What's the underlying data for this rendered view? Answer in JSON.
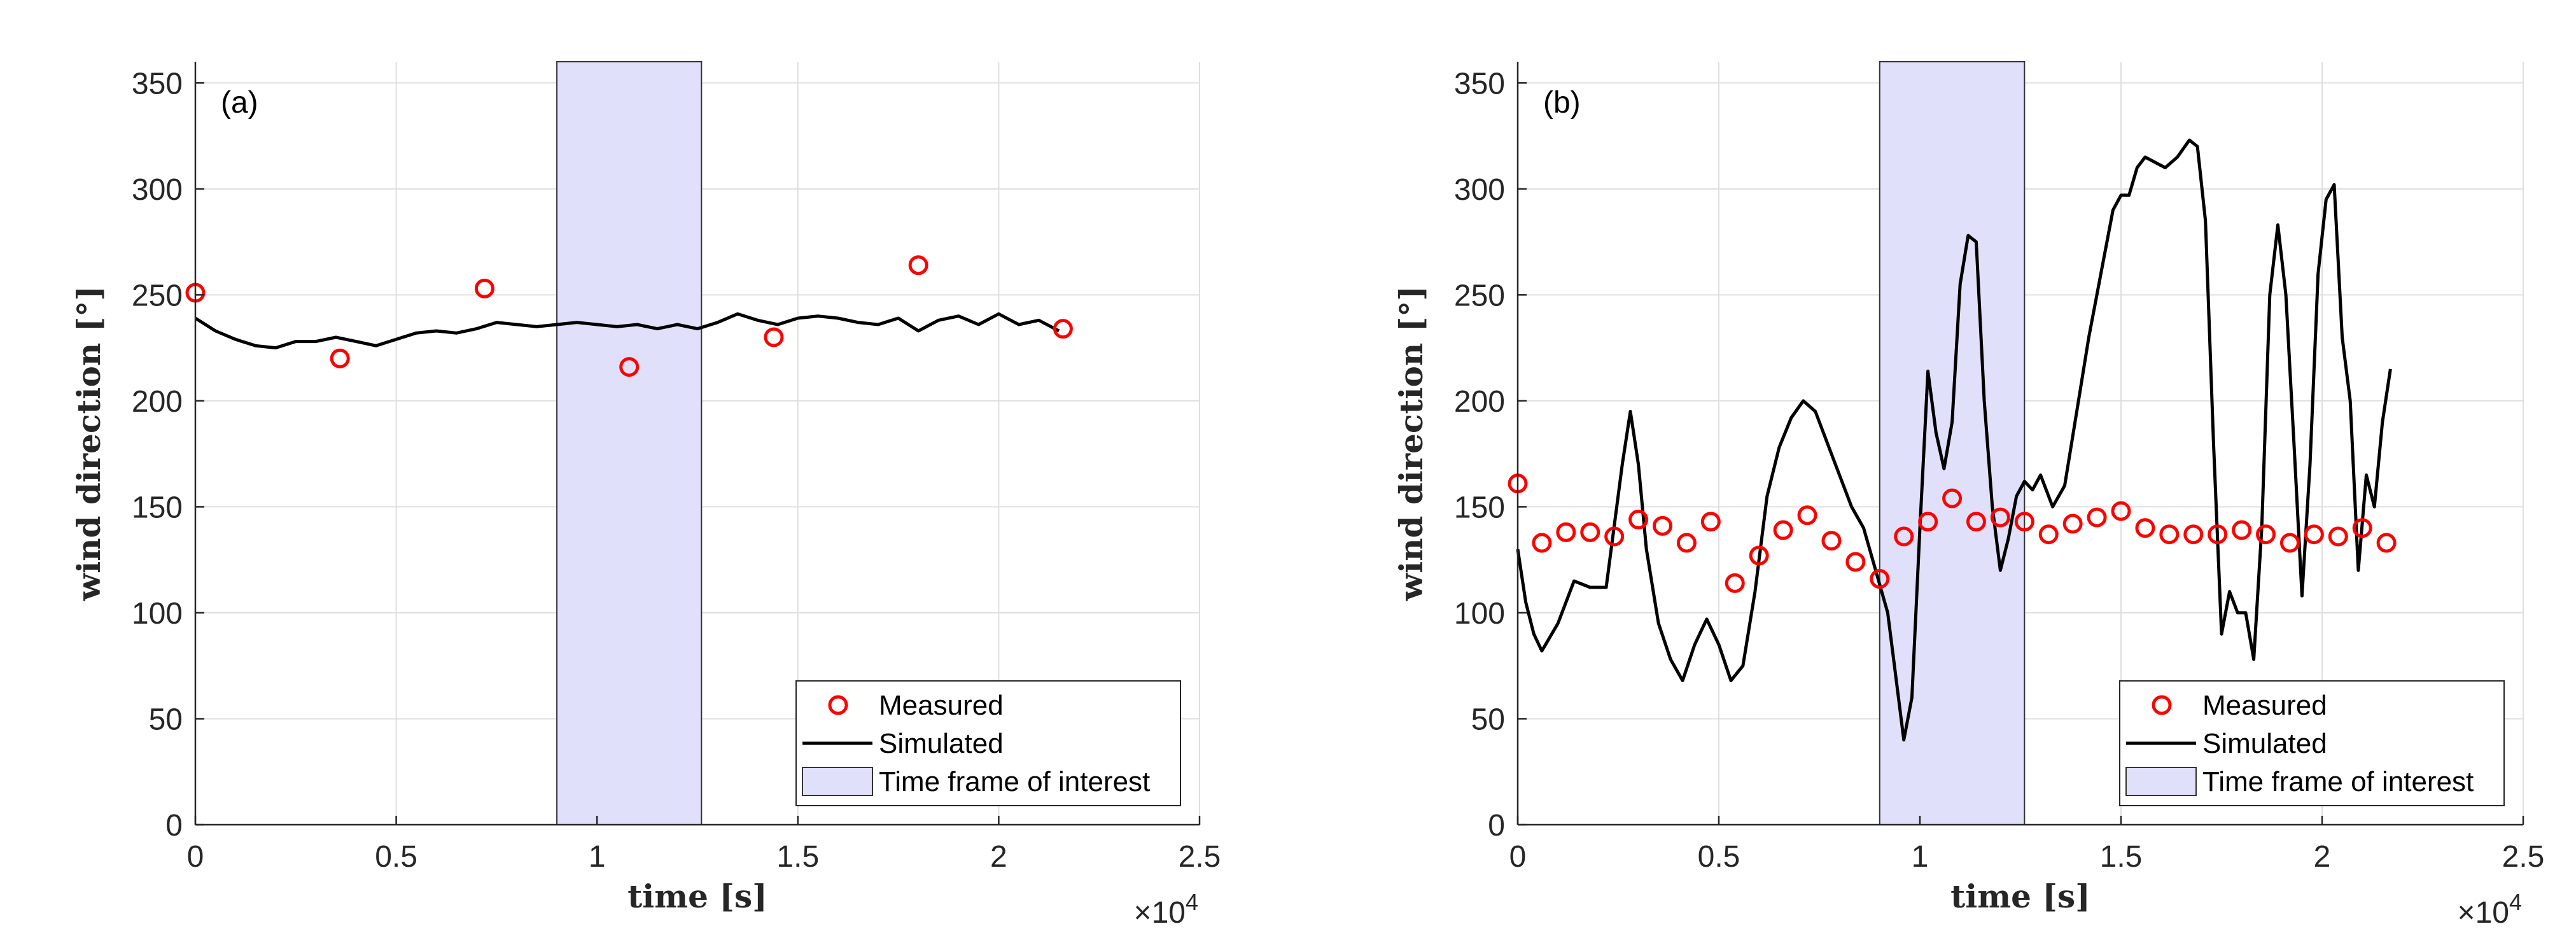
{
  "chart_data": [
    {
      "type": "line",
      "panel_label": "(a)",
      "xlabel": "time [s]",
      "ylabel": "wind direction [°]",
      "xlim": [
        0,
        25000
      ],
      "ylim": [
        0,
        360
      ],
      "x_ticks": [
        0,
        5000,
        10000,
        15000,
        20000,
        25000
      ],
      "x_tick_labels": [
        "0",
        "0.5",
        "1",
        "1.5",
        "2",
        "2.5"
      ],
      "y_ticks": [
        0,
        50,
        100,
        150,
        200,
        250,
        300,
        350
      ],
      "y_tick_labels": [
        "0",
        "50",
        "100",
        "150",
        "200",
        "250",
        "300",
        "350"
      ],
      "x_exponent_label": "×10",
      "x_exponent_power": "4",
      "grid": true,
      "highlight": {
        "name": "Time frame of interest",
        "x_start": 9000,
        "x_end": 12600,
        "color": "#e0e0fa"
      },
      "series": [
        {
          "name": "Measured",
          "kind": "markers",
          "color": "#ff0000",
          "x": [
            0,
            3600,
            7200,
            10800,
            14400,
            18000,
            21600
          ],
          "y": [
            251,
            220,
            253,
            216,
            230,
            264,
            234
          ]
        },
        {
          "name": "Simulated",
          "kind": "line",
          "color": "#000000",
          "x": [
            0,
            500,
            1000,
            1500,
            2000,
            2500,
            3000,
            3500,
            4000,
            4500,
            5000,
            5500,
            6000,
            6500,
            7000,
            7500,
            8000,
            8500,
            9000,
            9500,
            10000,
            10500,
            11000,
            11500,
            12000,
            12500,
            13000,
            13500,
            14000,
            14500,
            15000,
            15500,
            16000,
            16500,
            17000,
            17500,
            18000,
            18500,
            19000,
            19500,
            20000,
            20500,
            21000,
            21500
          ],
          "y": [
            239,
            233,
            229,
            226,
            225,
            228,
            228,
            230,
            228,
            226,
            229,
            232,
            233,
            232,
            234,
            237,
            236,
            235,
            236,
            237,
            236,
            235,
            236,
            234,
            236,
            234,
            237,
            241,
            238,
            236,
            239,
            240,
            239,
            237,
            236,
            239,
            233,
            238,
            240,
            236,
            241,
            236,
            238,
            233
          ]
        }
      ],
      "legend": {
        "position": "bottom-right",
        "entries": [
          "Measured",
          "Simulated",
          "Time frame of interest"
        ]
      }
    },
    {
      "type": "line",
      "panel_label": "(b)",
      "xlabel": "time [s]",
      "ylabel": "wind direction [°]",
      "xlim": [
        0,
        25000
      ],
      "ylim": [
        0,
        360
      ],
      "x_ticks": [
        0,
        5000,
        10000,
        15000,
        20000,
        25000
      ],
      "x_tick_labels": [
        "0",
        "0.5",
        "1",
        "1.5",
        "2",
        "2.5"
      ],
      "y_ticks": [
        0,
        50,
        100,
        150,
        200,
        250,
        300,
        350
      ],
      "y_tick_labels": [
        "0",
        "50",
        "100",
        "150",
        "200",
        "250",
        "300",
        "350"
      ],
      "x_exponent_label": "×10",
      "x_exponent_power": "4",
      "grid": true,
      "highlight": {
        "name": "Time frame of interest",
        "x_start": 9000,
        "x_end": 12600,
        "color": "#e0e0fa"
      },
      "series": [
        {
          "name": "Measured",
          "kind": "markers",
          "color": "#ff0000",
          "x": [
            0,
            600,
            1200,
            1800,
            2400,
            3000,
            3600,
            4200,
            4800,
            5400,
            6000,
            6600,
            7200,
            7800,
            8400,
            9000,
            9600,
            10200,
            10800,
            11400,
            12000,
            12600,
            13200,
            13800,
            14400,
            15000,
            15600,
            16200,
            16800,
            17400,
            18000,
            18600,
            19200,
            19800,
            20400,
            21000,
            21600
          ],
          "y": [
            161,
            133,
            138,
            138,
            136,
            144,
            141,
            133,
            143,
            114,
            127,
            139,
            146,
            134,
            124,
            116,
            136,
            143,
            154,
            143,
            145,
            143,
            137,
            142,
            145,
            148,
            140,
            137,
            137,
            137,
            139,
            137,
            133,
            137,
            136,
            140,
            133
          ]
        },
        {
          "name": "Simulated",
          "kind": "line",
          "color": "#000000",
          "x": [
            0,
            200,
            400,
            600,
            1000,
            1400,
            1800,
            2200,
            2600,
            2800,
            3000,
            3200,
            3500,
            3800,
            4100,
            4400,
            4700,
            5000,
            5300,
            5600,
            5900,
            6200,
            6500,
            6800,
            7100,
            7400,
            7700,
            8000,
            8300,
            8600,
            8900,
            9200,
            9400,
            9600,
            9800,
            10000,
            10200,
            10400,
            10600,
            10800,
            11000,
            11200,
            11400,
            11600,
            11800,
            12000,
            12200,
            12400,
            12600,
            12800,
            13000,
            13300,
            13600,
            13900,
            14200,
            14500,
            14800,
            15000,
            15200,
            15400,
            15600,
            15800,
            16100,
            16400,
            16700,
            16900,
            17100,
            17300,
            17500,
            17700,
            17900,
            18100,
            18300,
            18500,
            18700,
            18900,
            19100,
            19300,
            19500,
            19700,
            19900,
            20100,
            20300,
            20500,
            20700,
            20900,
            21100,
            21300,
            21500,
            21700
          ],
          "y": [
            130,
            105,
            90,
            82,
            95,
            115,
            112,
            112,
            170,
            195,
            170,
            130,
            95,
            78,
            68,
            85,
            97,
            85,
            68,
            75,
            110,
            155,
            178,
            192,
            200,
            195,
            180,
            165,
            150,
            140,
            120,
            100,
            70,
            40,
            60,
            140,
            214,
            185,
            168,
            190,
            255,
            278,
            275,
            200,
            150,
            120,
            135,
            155,
            162,
            158,
            165,
            150,
            160,
            195,
            230,
            260,
            290,
            297,
            297,
            310,
            315,
            313,
            310,
            315,
            323,
            320,
            285,
            180,
            90,
            110,
            100,
            100,
            78,
            140,
            250,
            283,
            250,
            180,
            108,
            170,
            260,
            295,
            302,
            230,
            200,
            120,
            165,
            150,
            190,
            215
          ]
        }
      ],
      "legend": {
        "position": "bottom-right",
        "entries": [
          "Measured",
          "Simulated",
          "Time frame of interest"
        ]
      }
    }
  ]
}
